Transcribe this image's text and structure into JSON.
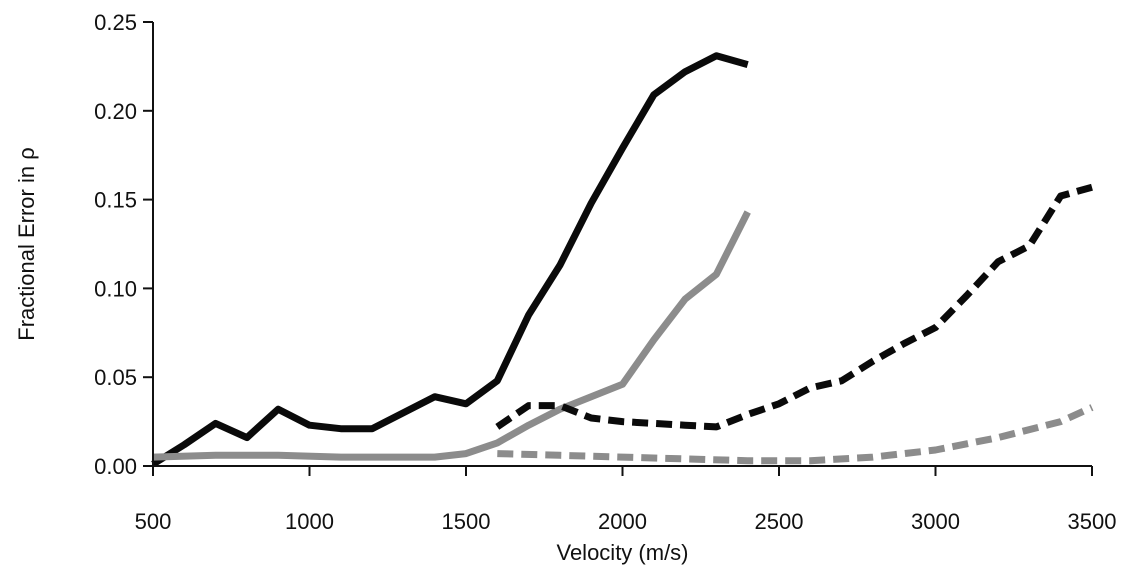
{
  "chart_data": {
    "type": "line",
    "xlabel": "Velocity (m/s)",
    "ylabel": "Fractional Error in ρ",
    "xlim": [
      500,
      3500
    ],
    "ylim": [
      0,
      0.25
    ],
    "x_ticks": [
      500,
      1000,
      1500,
      2000,
      2500,
      3000,
      3500
    ],
    "y_ticks": [
      0.0,
      0.05,
      0.1,
      0.15,
      0.2,
      0.25
    ],
    "grid": false,
    "legend": "none",
    "series": [
      {
        "color": "#0a0a0a",
        "style": "solid",
        "x": [
          500,
          600,
          700,
          800,
          900,
          1000,
          1100,
          1200,
          1300,
          1400,
          1500,
          1600,
          1700,
          1800,
          1900,
          2000,
          2100,
          2200,
          2300,
          2400
        ],
        "y": [
          0.001,
          0.012,
          0.024,
          0.016,
          0.032,
          0.023,
          0.021,
          0.021,
          0.03,
          0.039,
          0.035,
          0.048,
          0.085,
          0.113,
          0.148,
          0.179,
          0.209,
          0.222,
          0.231,
          0.226
        ]
      },
      {
        "color": "#8c8c8c",
        "style": "solid",
        "x": [
          500,
          700,
          900,
          1100,
          1300,
          1400,
          1500,
          1600,
          1700,
          1800,
          1900,
          2000,
          2100,
          2200,
          2300,
          2400
        ],
        "y": [
          0.005,
          0.006,
          0.006,
          0.005,
          0.005,
          0.005,
          0.007,
          0.013,
          0.023,
          0.032,
          0.039,
          0.046,
          0.071,
          0.094,
          0.108,
          0.143
        ]
      },
      {
        "color": "#0a0a0a",
        "style": "dashed",
        "x": [
          1600,
          1700,
          1800,
          1900,
          2000,
          2100,
          2200,
          2300,
          2400,
          2500,
          2600,
          2700,
          2800,
          2900,
          3000,
          3100,
          3200,
          3300,
          3400,
          3500
        ],
        "y": [
          0.022,
          0.034,
          0.034,
          0.027,
          0.025,
          0.024,
          0.023,
          0.022,
          0.029,
          0.035,
          0.044,
          0.048,
          0.059,
          0.069,
          0.078,
          0.096,
          0.115,
          0.124,
          0.152,
          0.157
        ]
      },
      {
        "color": "#8c8c8c",
        "style": "dashed",
        "x": [
          1600,
          1800,
          2000,
          2200,
          2400,
          2600,
          2800,
          3000,
          3200,
          3400,
          3500
        ],
        "y": [
          0.007,
          0.006,
          0.005,
          0.004,
          0.003,
          0.003,
          0.005,
          0.009,
          0.016,
          0.025,
          0.033
        ]
      }
    ]
  }
}
